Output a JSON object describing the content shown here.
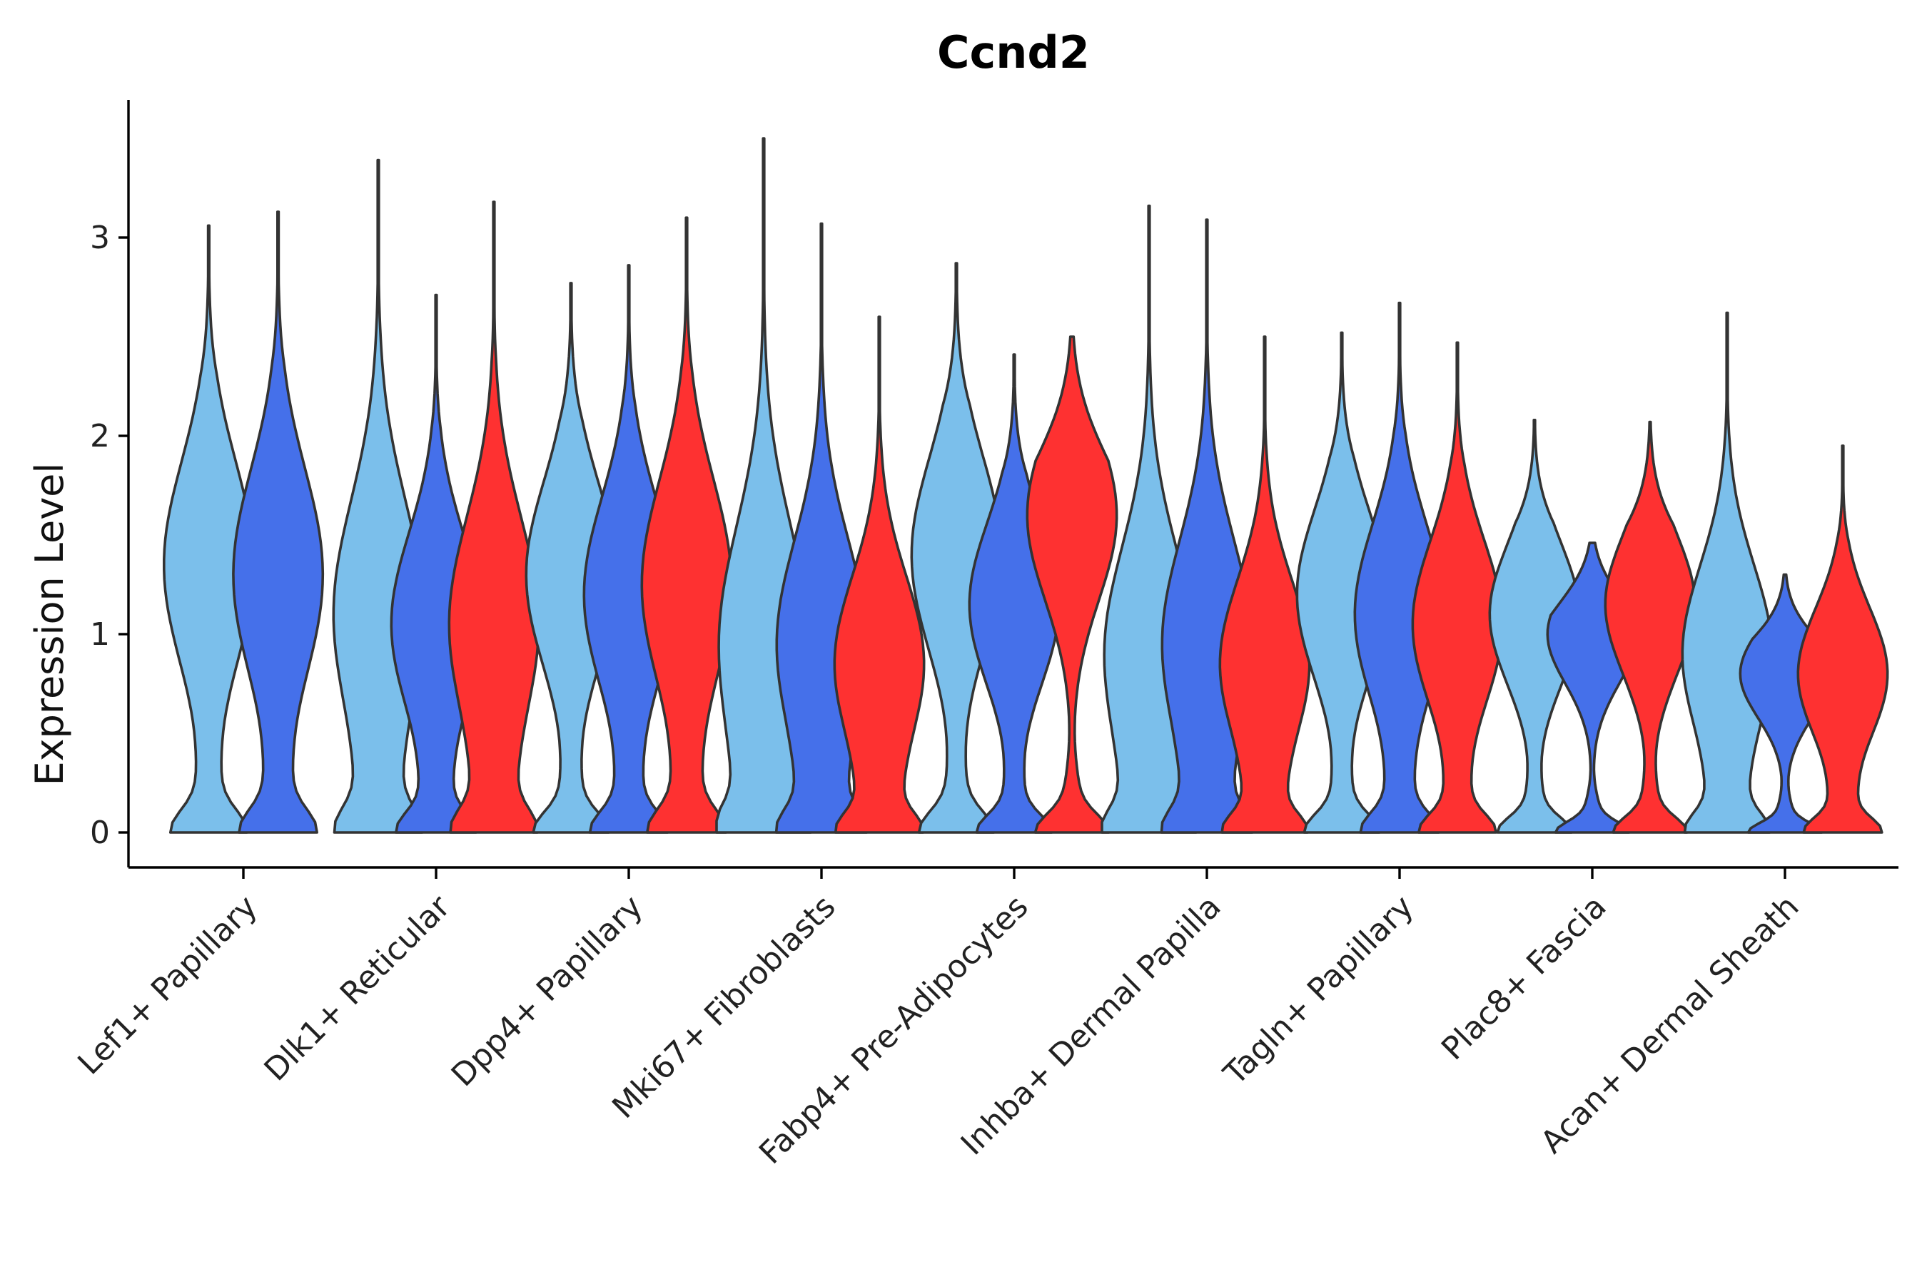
{
  "chart_data": {
    "type": "violin",
    "title": "Ccnd2",
    "xlabel": "",
    "ylabel": "Expression Level",
    "ylim": [
      -0.18,
      3.7
    ],
    "yticks": [
      0,
      1,
      2,
      3
    ],
    "grid": false,
    "legend": "none",
    "group_colors": [
      "#7bbfeb",
      "#4570ea",
      "#fe3131"
    ],
    "categories": [
      "Lef1+ Papillary",
      "Dlk1+ Reticular",
      "Dpp4+ Papillary",
      "Mki67+ Fibroblasts",
      "Fabp4+ Pre-Adipocytes",
      "Inhba+ Dermal Papilla",
      "Tagln+ Papillary",
      "Plac8+ Fascia",
      "Acan+ Dermal Sheath"
    ],
    "violins": [
      {
        "category": 0,
        "group": 0,
        "max": 3.06,
        "peak": 1.35
      },
      {
        "category": 0,
        "group": 1,
        "max": 3.13,
        "peak": 1.3
      },
      {
        "category": 1,
        "group": 0,
        "max": 3.39,
        "peak": 1.1
      },
      {
        "category": 1,
        "group": 1,
        "max": 2.71,
        "peak": 1.05
      },
      {
        "category": 1,
        "group": 2,
        "max": 3.18,
        "peak": 1.05
      },
      {
        "category": 2,
        "group": 0,
        "max": 2.77,
        "peak": 1.3
      },
      {
        "category": 2,
        "group": 1,
        "max": 2.86,
        "peak": 1.2
      },
      {
        "category": 2,
        "group": 2,
        "max": 3.1,
        "peak": 1.25
      },
      {
        "category": 3,
        "group": 0,
        "max": 3.5,
        "peak": 0.95
      },
      {
        "category": 3,
        "group": 1,
        "max": 3.07,
        "peak": 0.95
      },
      {
        "category": 3,
        "group": 2,
        "max": 2.6,
        "peak": 0.85
      },
      {
        "category": 4,
        "group": 0,
        "max": 2.87,
        "peak": 1.4
      },
      {
        "category": 4,
        "group": 1,
        "max": 2.41,
        "peak": 1.15
      },
      {
        "category": 4,
        "group": 2,
        "max": 2.5,
        "peak": 1.6
      },
      {
        "category": 5,
        "group": 0,
        "max": 3.16,
        "peak": 0.9
      },
      {
        "category": 5,
        "group": 1,
        "max": 3.09,
        "peak": 0.95
      },
      {
        "category": 5,
        "group": 2,
        "max": 2.5,
        "peak": 0.85
      },
      {
        "category": 6,
        "group": 0,
        "max": 2.52,
        "peak": 1.2
      },
      {
        "category": 6,
        "group": 1,
        "max": 2.67,
        "peak": 1.1
      },
      {
        "category": 6,
        "group": 2,
        "max": 2.47,
        "peak": 1.05
      },
      {
        "category": 7,
        "group": 0,
        "max": 2.08,
        "peak": 1.1
      },
      {
        "category": 7,
        "group": 1,
        "max": 1.46,
        "peak": 1.0
      },
      {
        "category": 7,
        "group": 2,
        "max": 2.07,
        "peak": 1.15
      },
      {
        "category": 8,
        "group": 0,
        "max": 2.62,
        "peak": 0.9
      },
      {
        "category": 8,
        "group": 1,
        "max": 1.3,
        "peak": 0.8
      },
      {
        "category": 8,
        "group": 2,
        "max": 1.95,
        "peak": 0.8
      }
    ]
  }
}
